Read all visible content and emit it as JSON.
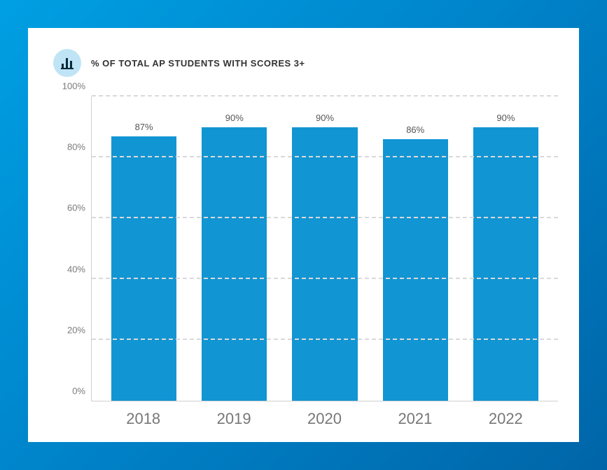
{
  "chart": {
    "type": "bar",
    "title": "% OF TOTAL AP STUDENTS WITH SCORES 3+",
    "title_fontsize": 13,
    "title_color": "#333333",
    "icon_bg": "#bfe4f5",
    "background_color": "#ffffff",
    "outer_gradient_start": "#009fe3",
    "outer_gradient_end": "#0065a8",
    "bar_color": "#1295d3",
    "grid_color": "#d9d9d9",
    "axis_color": "#d0d0d0",
    "ylim": [
      0,
      100
    ],
    "ytick_step": 20,
    "yticks": [
      {
        "value": 0,
        "label": "0%"
      },
      {
        "value": 20,
        "label": "20%"
      },
      {
        "value": 40,
        "label": "40%"
      },
      {
        "value": 60,
        "label": "60%"
      },
      {
        "value": 80,
        "label": "80%"
      },
      {
        "value": 100,
        "label": "100%"
      }
    ],
    "ytick_fontsize": 13,
    "ytick_color": "#7a7a7a",
    "categories": [
      "2018",
      "2019",
      "2020",
      "2021",
      "2022"
    ],
    "values": [
      87,
      90,
      90,
      86,
      90
    ],
    "value_labels": [
      "87%",
      "90%",
      "90%",
      "86%",
      "90%"
    ],
    "value_label_fontsize": 13,
    "value_label_color": "#555555",
    "xlabel_fontsize": 22,
    "xlabel_color": "#777777",
    "bar_width": 0.62
  }
}
